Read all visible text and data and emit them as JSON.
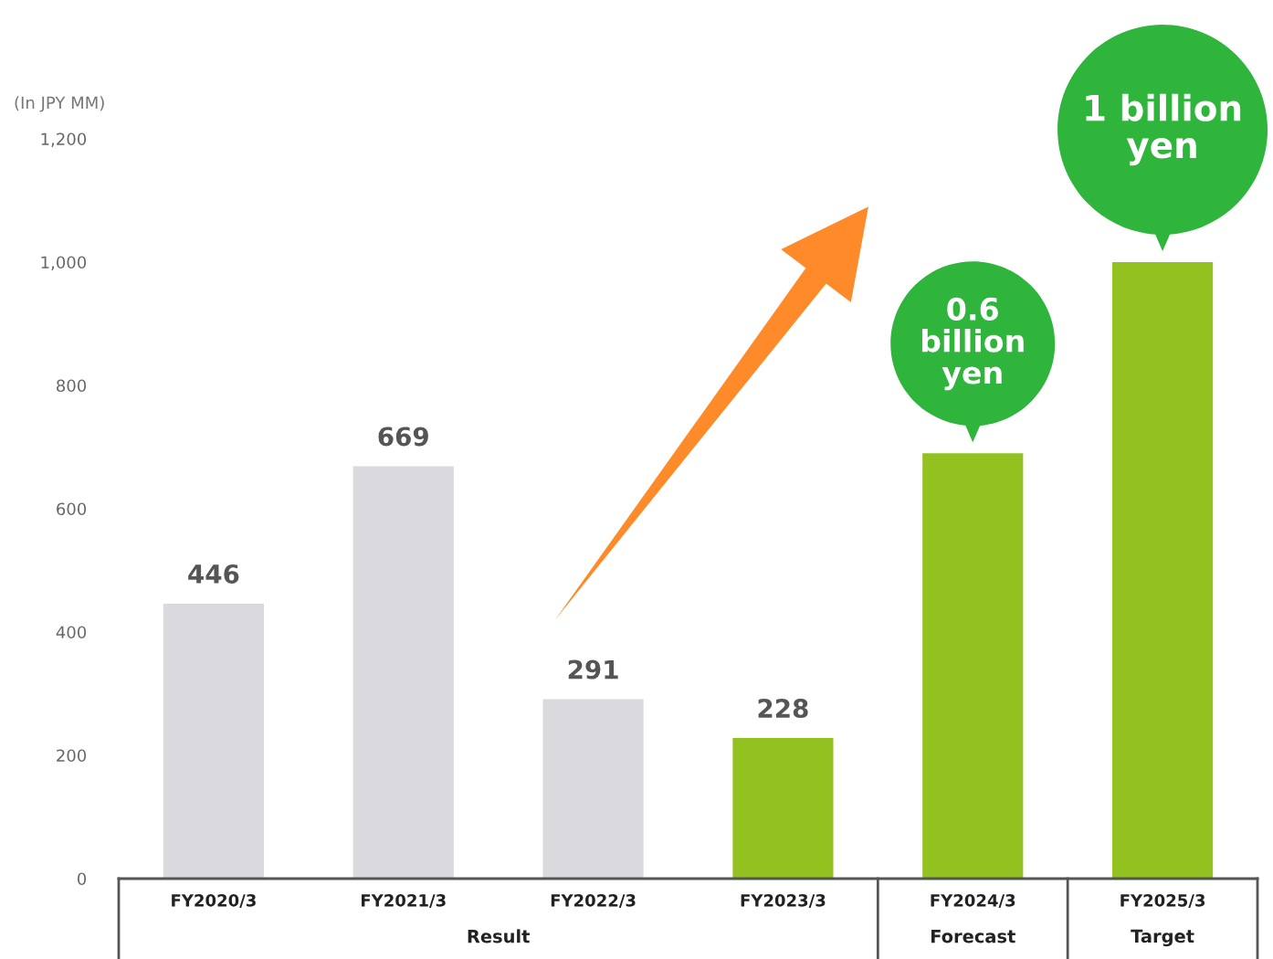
{
  "chart_data": {
    "type": "bar",
    "ylabel": "(In JPY MM)",
    "categories": [
      "FY2020/3",
      "FY2021/3",
      "FY2022/3",
      "FY2023/3",
      "FY2024/3",
      "FY2025/3"
    ],
    "values": [
      446,
      669,
      291,
      228,
      690,
      1000
    ],
    "colors": [
      "#d9d9de",
      "#d9d9de",
      "#d9d9de",
      "#92c120",
      "#92c120",
      "#92c120"
    ],
    "value_labels": [
      "446",
      "669",
      "291",
      "228",
      null,
      null
    ],
    "ylim": [
      0,
      1200
    ],
    "yticks": [
      {
        "value": 0,
        "label": "0"
      },
      {
        "value": 200,
        "label": "200"
      },
      {
        "value": 400,
        "label": "400"
      },
      {
        "value": 600,
        "label": "600"
      },
      {
        "value": 800,
        "label": "800"
      },
      {
        "value": 1000,
        "label": "1,000"
      },
      {
        "value": 1200,
        "label": "1,200"
      }
    ],
    "grid": false,
    "annotations": [
      {
        "text": "0.6\nbillion\nyen",
        "x": "FY2024/3",
        "y": 690
      },
      {
        "text": "1 billion\nyen",
        "x": "FY2025/3",
        "y": 1000
      },
      "Result",
      "Forecast",
      "Target"
    ]
  }
}
